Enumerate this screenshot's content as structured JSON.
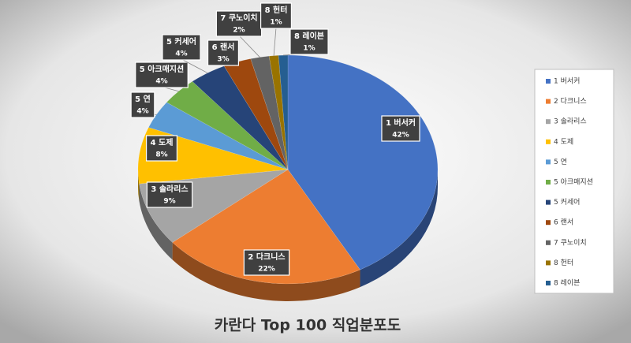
{
  "chart_data": {
    "type": "pie",
    "title": "카란다 Top 100 직업분포도",
    "categories": [
      "1 버서커",
      "2 다크니스",
      "3 솔라리스",
      "4 도제",
      "5 연",
      "5 아크매지션",
      "5 커세어",
      "6 랜서",
      "7 쿠노이치",
      "8 헌터",
      "8 레이븐"
    ],
    "values": [
      42,
      22,
      9,
      8,
      4,
      4,
      4,
      3,
      2,
      1,
      1
    ],
    "value_labels": [
      "42%",
      "22%",
      "9%",
      "8%",
      "4%",
      "4%",
      "4%",
      "3%",
      "2%",
      "1%",
      "1%"
    ],
    "colors": [
      "#4472c4",
      "#ed7d31",
      "#a5a5a5",
      "#ffc000",
      "#5b9bd5",
      "#70ad47",
      "#264478",
      "#9e480e",
      "#636363",
      "#997300",
      "#255e91"
    ],
    "legend": "right"
  }
}
